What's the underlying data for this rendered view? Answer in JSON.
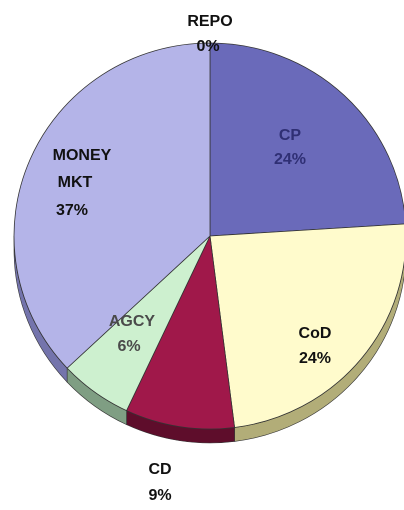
{
  "chart_data": {
    "type": "pie",
    "slices": [
      {
        "label": "REPO",
        "value": 0,
        "value_label": "0%",
        "color": "#6a6aa6",
        "side": "#3c3c6e",
        "text_color": "#111111"
      },
      {
        "label": "CP",
        "value": 24,
        "value_label": "24%",
        "color": "#6a6aba",
        "side": "#3d3d7a",
        "text_color": "#2f2f74"
      },
      {
        "label": "CoD",
        "value": 24,
        "value_label": "24%",
        "color": "#fffbcc",
        "side": "#b2ad78",
        "text_color": "#111111"
      },
      {
        "label": "CD",
        "value": 9,
        "value_label": "9%",
        "color": "#a0184a",
        "side": "#5e0d2b",
        "text_color": "#111111"
      },
      {
        "label": "AGCY",
        "value": 6,
        "value_label": "6%",
        "color": "#cdf0cf",
        "side": "#7f9e83",
        "text_color": "#4a4a4a"
      },
      {
        "label": "MONEY MKT",
        "value": 37,
        "value_label": "37%",
        "color": "#b4b4e8",
        "side": "#7474ac",
        "text_color": "#111111"
      }
    ]
  }
}
